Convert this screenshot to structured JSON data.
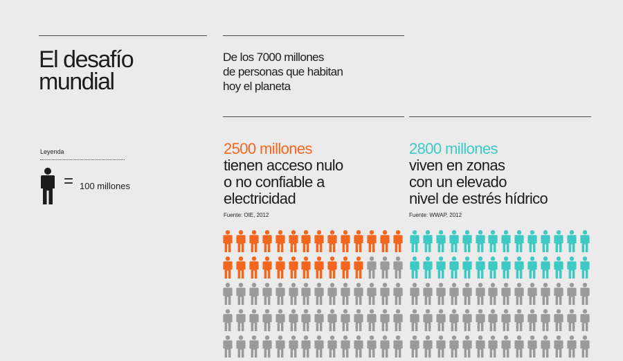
{
  "title": "El desafío\nmundial",
  "intro": "De los 7000 millones\nde personas que habitan\nhoy el planeta",
  "legend": {
    "label": "Leyenda",
    "equals": "=",
    "value_text": "100 millones",
    "icon": "person-icon"
  },
  "stats": [
    {
      "number": "2500 millones",
      "description": "tienen acceso nulo\no no confiable a\nelectricidad",
      "source": "Fuente: OIE, 2012",
      "highlight_count": 25,
      "color": "#f2661e"
    },
    {
      "number": "2800 millones",
      "description": "viven en zonas\ncon un elevado\nnivel de estrés hídrico",
      "source": "Fuente: WWAP, 2012",
      "highlight_count": 28,
      "color": "#3ec9c4"
    }
  ],
  "colors": {
    "background": "#ebebeb",
    "neutral_person": "#9a9a9a",
    "legend_person": "#1c1c1c"
  }
}
